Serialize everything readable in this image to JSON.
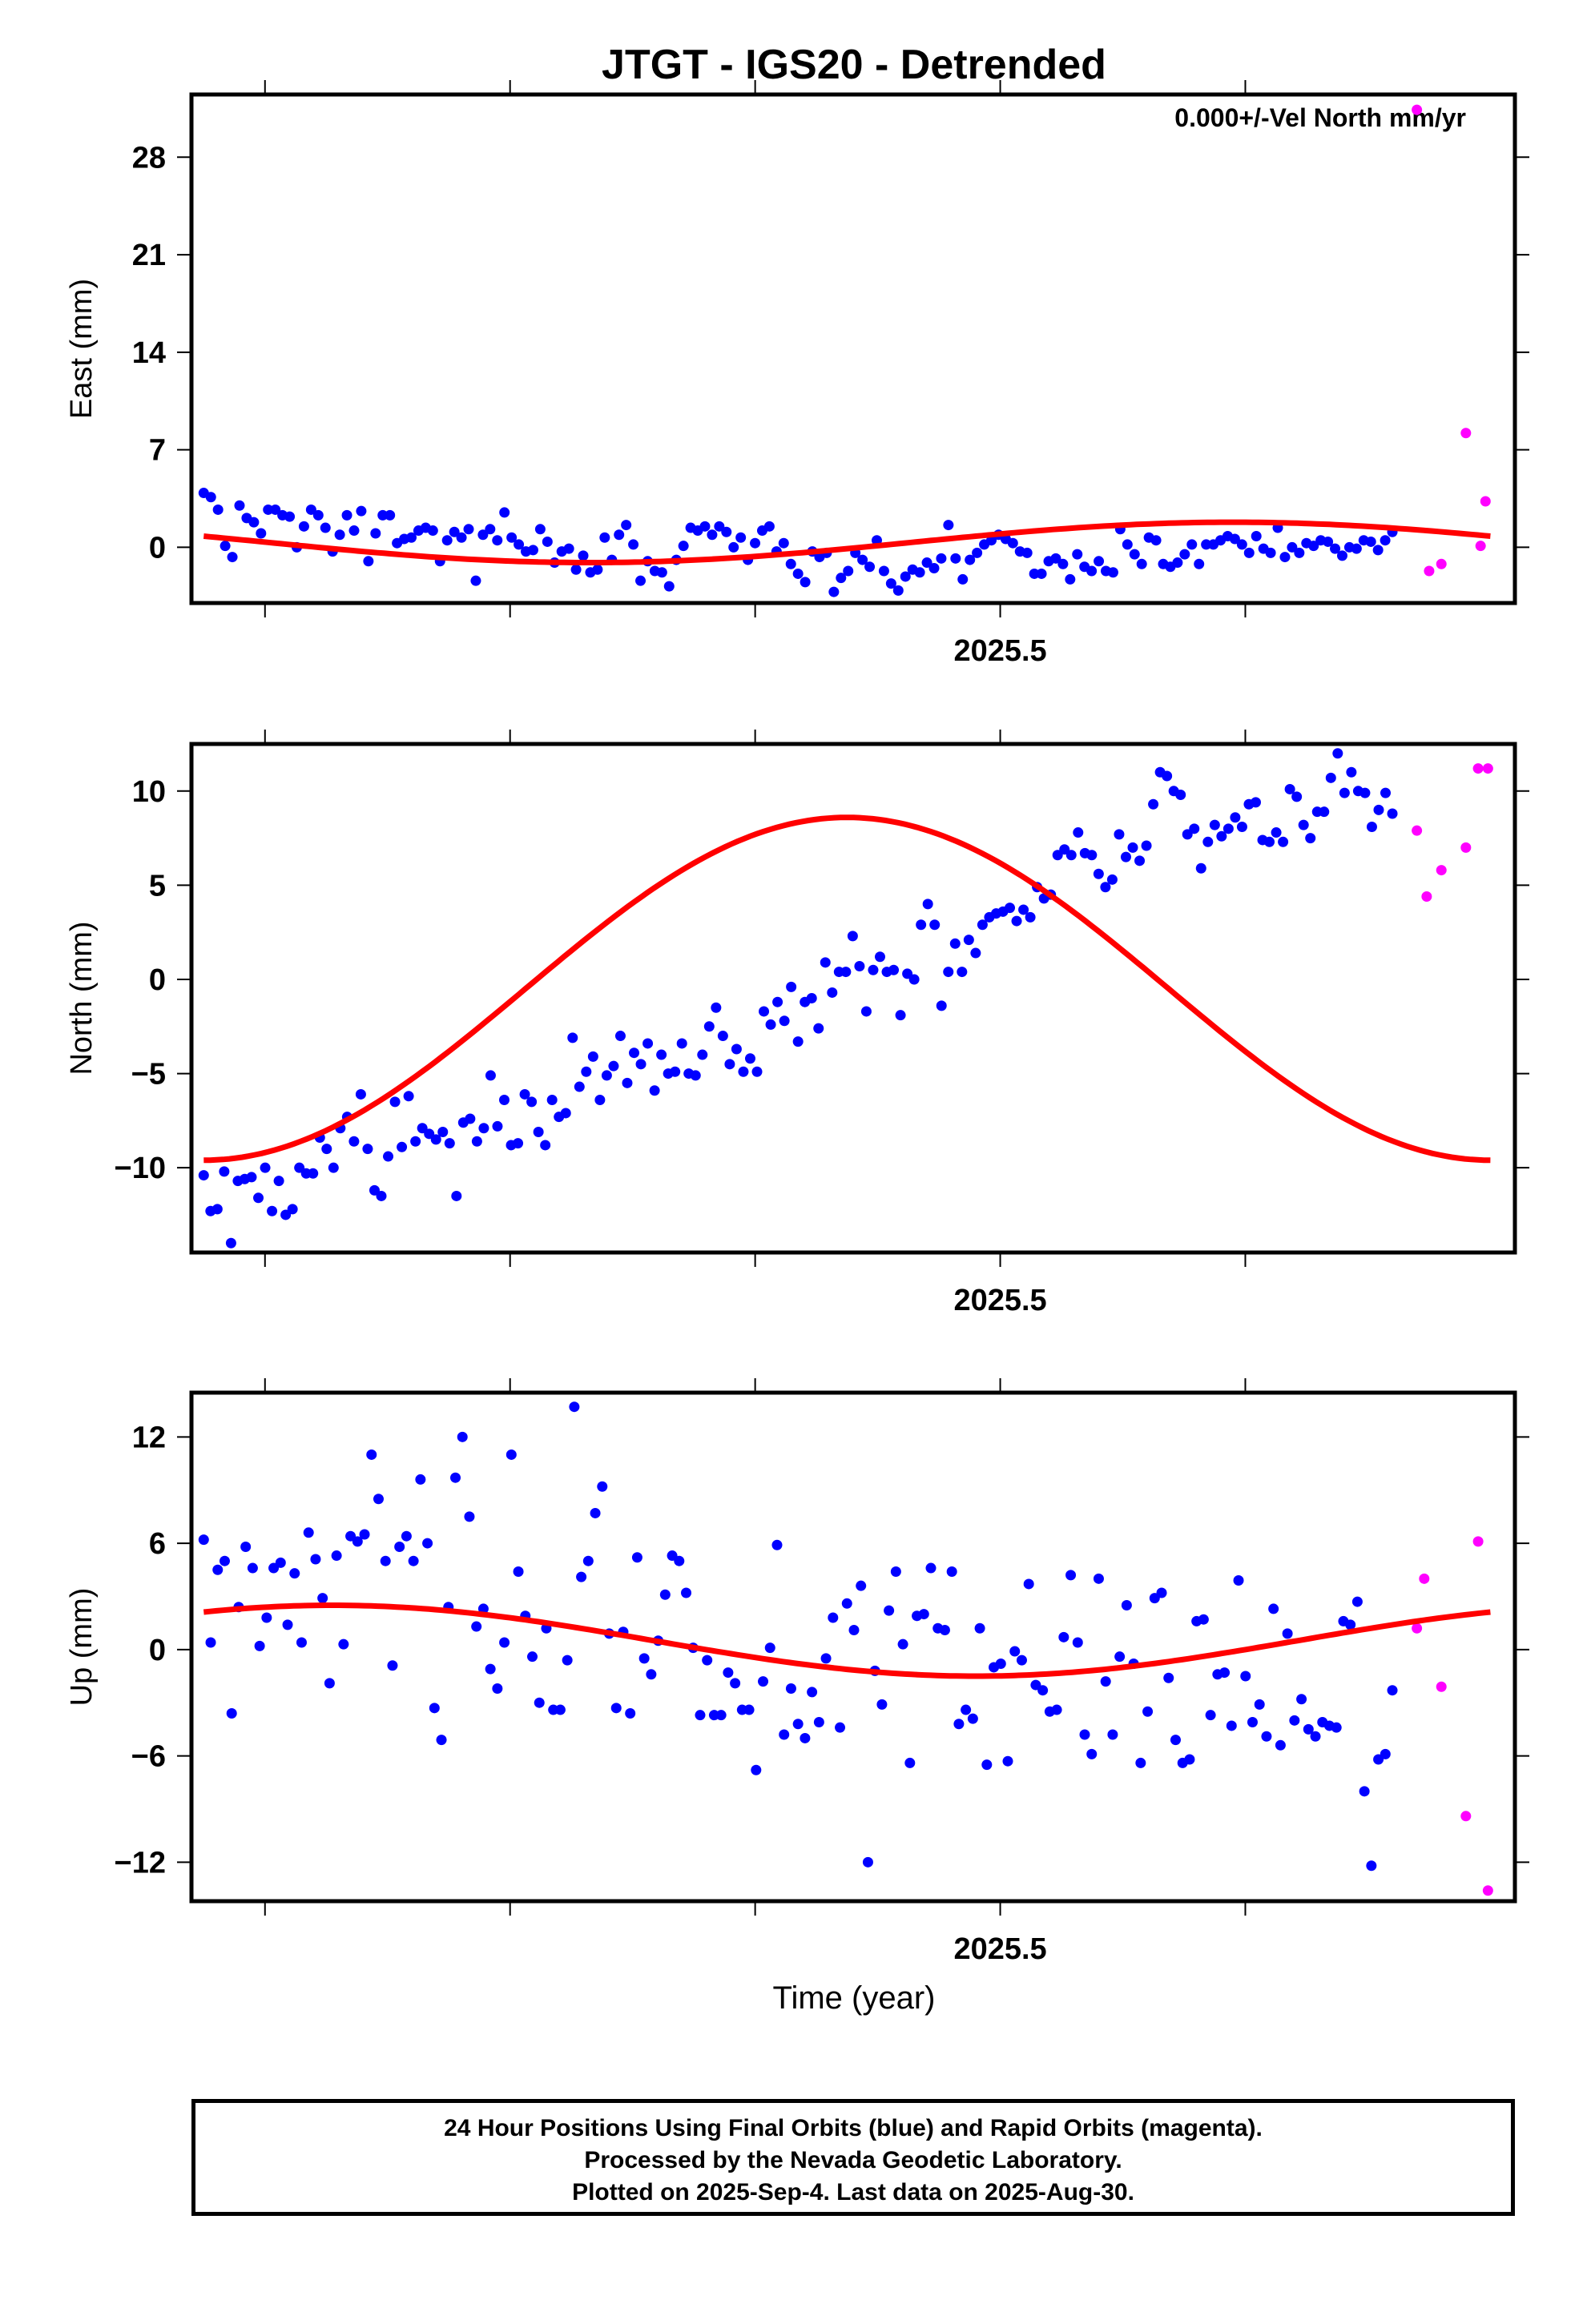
{
  "title": "JTGT - IGS20 - Detrended",
  "annotation": "0.000+/-Vel North mm/yr",
  "x_axis_label": "Time (year)",
  "footer": {
    "line1": "24 Hour Positions Using Final Orbits (blue) and Rapid Orbits (magenta).",
    "line2": "Processed by the Nevada Geodetic Laboratory.",
    "line3": "Plotted on 2025-Sep-4. Last data on 2025-Aug-30."
  },
  "colors": {
    "final": "#0000ff",
    "rapid": "#ff00ff",
    "fit": "#ff0000",
    "frame": "#000000"
  },
  "chart_data": [
    {
      "type": "scatter",
      "ylabel": "East (mm)",
      "xlim": [
        2025.17,
        2025.71
      ],
      "ylim": [
        -4.0,
        32.5
      ],
      "yticks": [
        0,
        7,
        14,
        21,
        28
      ],
      "xticks_major": [
        2025.5
      ],
      "xtick_labels": [
        "2025.5"
      ],
      "xticks_minor": [
        2025.2,
        2025.3,
        2025.4,
        2025.6
      ],
      "fit": {
        "mean": 0.35,
        "slope": 0,
        "amp1": 1.45,
        "phase1": 0.2,
        "amp2": 0.0,
        "phase2": 0.0
      },
      "series": [
        {
          "values": [
            3.9,
            3.6,
            2.7,
            0.1,
            -0.7,
            3.0,
            2.1,
            1.8,
            1.0,
            2.7,
            2.7,
            2.3,
            2.2,
            0.0,
            1.5,
            2.7,
            2.3,
            1.4,
            -0.3,
            0.9,
            2.3,
            1.2,
            2.6,
            -1.0,
            1.0,
            2.3,
            2.3,
            0.3,
            0.6,
            0.7,
            1.2,
            1.4,
            1.2,
            -1.0,
            0.5,
            1.1,
            0.7,
            1.3,
            -2.4,
            0.9,
            1.3,
            0.5,
            2.5,
            0.7,
            0.2,
            -0.3,
            -0.2,
            1.3,
            0.4,
            -1.1,
            -0.3,
            -0.1,
            -1.6,
            -0.6,
            -1.8,
            -1.6,
            0.7,
            -0.9,
            0.9,
            1.6,
            0.2,
            -2.4,
            -1.0,
            -1.7,
            -1.8,
            -2.8,
            -0.9,
            0.1,
            1.4,
            1.2,
            1.5,
            0.9,
            1.5,
            1.1,
            0.0,
            0.7,
            -0.9,
            0.3,
            1.2,
            1.5,
            -0.3,
            0.3,
            -1.2,
            -1.9,
            -2.5,
            -0.3,
            -0.7,
            -0.4,
            -3.2,
            -2.2,
            -1.7,
            -0.4,
            -0.9,
            -1.4,
            0.5,
            -1.7,
            -2.6,
            -3.1,
            -2.1,
            -1.6,
            -1.8,
            -1.1,
            -1.5,
            -0.8,
            1.6,
            -0.8,
            -2.3,
            -0.9,
            -0.4,
            0.2,
            0.5,
            0.9,
            0.6,
            0.3,
            -0.3,
            -0.4,
            -1.9,
            -1.9,
            -1.0,
            -0.8,
            -1.2,
            -2.3,
            -0.5,
            -1.4,
            -1.7,
            -1.0,
            -1.7,
            -1.8,
            1.3,
            0.2,
            -0.5,
            -1.2,
            0.7,
            0.5,
            -1.2,
            -1.4,
            -1.1,
            -0.5,
            0.2,
            -1.2,
            0.2,
            0.2,
            0.5,
            0.8,
            0.6,
            0.2,
            -0.4,
            0.8,
            -0.1,
            -0.4,
            1.4,
            -0.7,
            0.0,
            -0.4,
            0.3,
            0.1,
            0.5,
            0.4,
            -0.1,
            -0.6,
            0.0,
            -0.1,
            0.5,
            0.4,
            -0.2,
            0.5,
            1.1
          ],
          "color": "#0000ff"
        },
        {
          "x": [
            2025.67,
            2025.675,
            2025.68,
            2025.69,
            2025.696,
            2025.698
          ],
          "values": [
            31.4,
            -1.7,
            -1.2,
            8.2,
            0.1,
            3.3
          ],
          "color": "#ff00ff"
        }
      ]
    },
    {
      "type": "scatter",
      "ylabel": "North (mm)",
      "xlim": [
        2025.17,
        2025.71
      ],
      "ylim": [
        -14.5,
        12.5
      ],
      "yticks": [
        -10,
        -5,
        0,
        5,
        10
      ],
      "xticks_major": [
        2025.5
      ],
      "xtick_labels": [
        "2025.5"
      ],
      "xticks_minor": [
        2025.2,
        2025.3,
        2025.4,
        2025.6
      ],
      "fit": {
        "mean": -0.5,
        "slope": 0,
        "amp1": 9.1,
        "phase1": 0.5,
        "amp2": 0.0,
        "phase2": 0.0
      },
      "series": [
        {
          "values": [
            -10.4,
            -12.3,
            -12.2,
            -10.2,
            -14.0,
            -10.7,
            -10.6,
            -10.5,
            -11.6,
            -10.0,
            -12.3,
            -10.7,
            -12.5,
            -12.2,
            -10.0,
            -10.3,
            -10.3,
            -8.4,
            -9.0,
            -10.0,
            -7.9,
            -7.3,
            -8.6,
            -6.1,
            -9.0,
            -11.2,
            -11.5,
            -9.4,
            -6.5,
            -8.9,
            -6.2,
            -8.6,
            -7.9,
            -8.2,
            -8.5,
            -8.1,
            -8.7,
            -11.5,
            -7.6,
            -7.4,
            -8.6,
            -7.9,
            -5.1,
            -7.8,
            -6.4,
            -8.8,
            -8.7,
            -6.1,
            -6.5,
            -8.1,
            -8.8,
            -6.4,
            -7.3,
            -7.1,
            -3.1,
            -5.7,
            -4.9,
            -4.1,
            -6.4,
            -5.1,
            -4.6,
            -3.0,
            -5.5,
            -3.9,
            -4.5,
            -3.4,
            -5.9,
            -4.0,
            -5.0,
            -4.9,
            -3.4,
            -5.0,
            -5.1,
            -4.0,
            -2.5,
            -1.5,
            -3.0,
            -4.5,
            -3.7,
            -4.9,
            -4.2,
            -4.9,
            -1.7,
            -2.4,
            -1.2,
            -2.2,
            -0.4,
            -3.3,
            -1.2,
            -1.0,
            -2.6,
            0.9,
            -0.7,
            0.4,
            0.4,
            2.3,
            0.7,
            -1.7,
            0.5,
            1.2,
            0.4,
            0.5,
            -1.9,
            0.3,
            0.0,
            2.9,
            4.0,
            2.9,
            -1.4,
            0.4,
            1.9,
            0.4,
            2.1,
            1.4,
            2.9,
            3.3,
            3.5,
            3.6,
            3.8,
            3.1,
            3.7,
            3.3,
            4.9,
            4.3,
            4.5,
            6.6,
            6.9,
            6.6,
            7.8,
            6.7,
            6.6,
            5.6,
            4.9,
            5.3,
            7.7,
            6.5,
            7.0,
            6.3,
            7.1,
            9.3,
            11.0,
            10.8,
            10.0,
            9.8,
            7.7,
            8.0,
            5.9,
            7.3,
            8.2,
            7.6,
            8.0,
            8.6,
            8.1,
            9.3,
            9.4,
            7.4,
            7.3,
            7.8,
            7.3,
            10.1,
            9.7,
            8.2,
            7.5,
            8.9,
            8.9,
            10.7,
            12.0,
            9.9,
            11.0,
            10.0,
            9.9,
            8.1,
            9.0,
            9.9,
            8.8
          ],
          "color": "#0000ff"
        },
        {
          "x": [
            2025.67,
            2025.674,
            2025.68,
            2025.69,
            2025.695,
            2025.699
          ],
          "values": [
            7.9,
            4.4,
            5.8,
            7.0,
            11.2,
            11.2
          ],
          "color": "#ff00ff"
        }
      ]
    },
    {
      "type": "scatter",
      "ylabel": "Up (mm)",
      "xlim": [
        2025.17,
        2025.71
      ],
      "ylim": [
        -14.2,
        14.5
      ],
      "yticks": [
        -12,
        -6,
        0,
        6,
        12
      ],
      "xticks_major": [
        2025.5
      ],
      "xtick_labels": [
        "2025.5"
      ],
      "xticks_minor": [
        2025.2,
        2025.3,
        2025.4,
        2025.6
      ],
      "fit": {
        "mean": 0.5,
        "slope": 0,
        "amp1": 2.0,
        "phase1": -0.1,
        "amp2": 0.0,
        "phase2": 0.0
      },
      "series": [
        {
          "values": [
            6.2,
            0.4,
            4.5,
            5.0,
            -3.6,
            2.4,
            5.8,
            4.6,
            0.2,
            1.8,
            4.6,
            4.9,
            1.4,
            4.3,
            0.4,
            6.6,
            5.1,
            2.9,
            -1.9,
            5.3,
            0.3,
            6.4,
            6.1,
            6.5,
            11.0,
            8.5,
            5.0,
            -0.9,
            5.8,
            6.4,
            5.0,
            9.6,
            6.0,
            -3.3,
            -5.1,
            2.4,
            9.7,
            12.0,
            7.5,
            1.3,
            2.3,
            -1.1,
            -2.2,
            0.4,
            11.0,
            4.4,
            1.9,
            -0.4,
            -3.0,
            1.2,
            -3.4,
            -3.4,
            -0.6,
            13.7,
            4.1,
            5.0,
            7.7,
            9.2,
            0.9,
            -3.3,
            1.0,
            -3.6,
            5.2,
            -0.5,
            -1.4,
            0.5,
            3.1,
            5.3,
            5.0,
            3.2,
            0.1,
            -3.7,
            -0.6,
            -3.7,
            -3.7,
            -1.3,
            -1.9,
            -3.4,
            -3.4,
            -6.8,
            -1.8,
            0.1,
            5.9,
            -4.8,
            -2.2,
            -4.2,
            -5.0,
            -2.4,
            -4.1,
            -0.5,
            1.8,
            -4.4,
            2.6,
            1.1,
            3.6,
            -12.0,
            -1.2,
            -3.1,
            2.2,
            4.4,
            0.3,
            -6.4,
            1.9,
            2.0,
            4.6,
            1.2,
            1.1,
            4.4,
            -4.2,
            -3.4,
            -3.9,
            1.2,
            -6.5,
            -1.0,
            -0.8,
            -6.3,
            -0.1,
            -0.6,
            3.7,
            -2.0,
            -2.3,
            -3.5,
            -3.4,
            0.7,
            4.2,
            0.4,
            -4.8,
            -5.9,
            4.0,
            -1.8,
            -4.8,
            -0.4,
            2.5,
            -0.8,
            -6.4,
            -3.5,
            2.9,
            3.2,
            -1.6,
            -5.1,
            -6.4,
            -6.2,
            1.6,
            1.7,
            -3.7,
            -1.4,
            -1.3,
            -4.3,
            3.9,
            -1.5,
            -4.1,
            -3.1,
            -4.9,
            2.3,
            -5.4,
            0.9,
            -4.0,
            -2.8,
            -4.5,
            -4.9,
            -4.1,
            -4.3,
            -4.4,
            1.6,
            1.4,
            2.7,
            -8.0,
            -12.2,
            -6.2,
            -5.9,
            -2.3
          ],
          "color": "#0000ff"
        },
        {
          "x": [
            2025.67,
            2025.673,
            2025.68,
            2025.69,
            2025.695,
            2025.699
          ],
          "values": [
            1.2,
            4.0,
            -2.1,
            -9.4,
            6.1,
            -13.6
          ],
          "color": "#ff00ff"
        }
      ]
    }
  ]
}
